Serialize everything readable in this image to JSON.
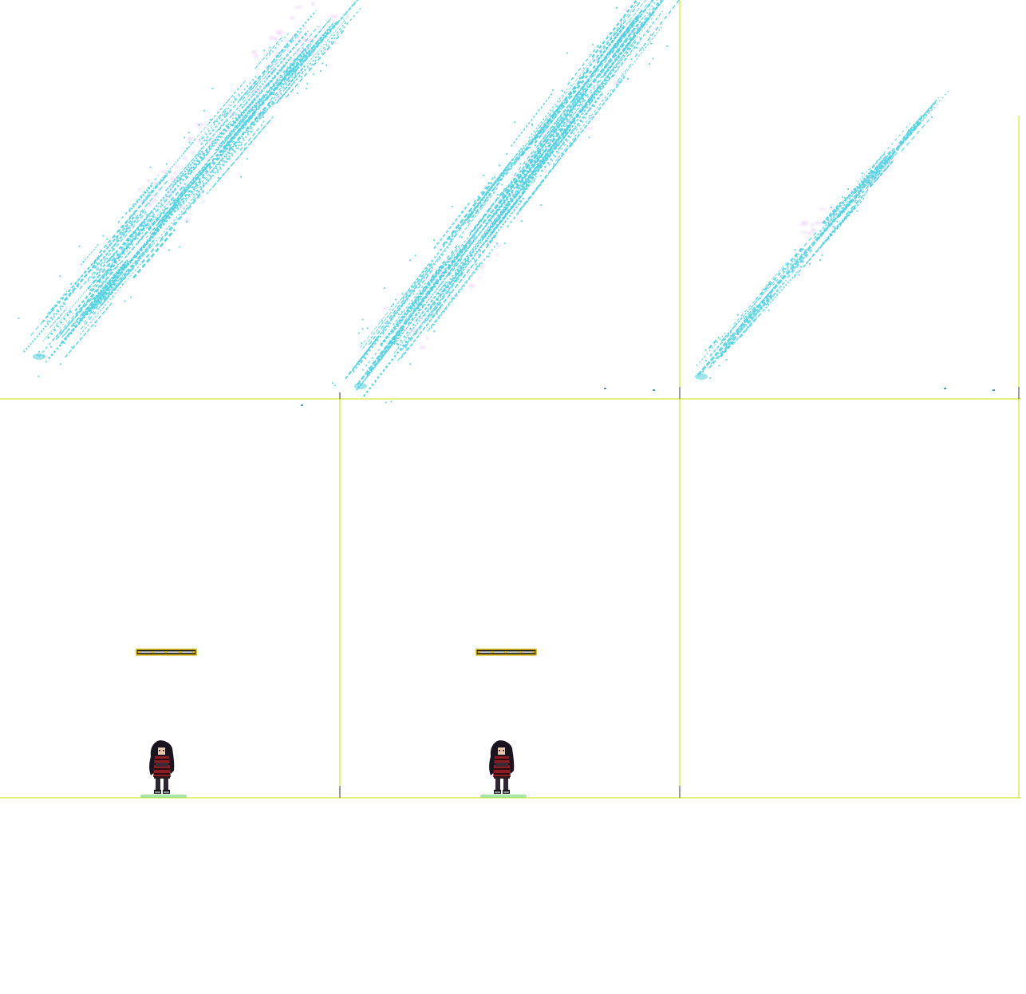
{
  "sprite_sheet": {
    "grid": {
      "columns": 3,
      "rows": 2
    },
    "guide_color": "#c8e000",
    "ground_color": "#6fd66f",
    "frames": [
      {
        "slot": "frame-1",
        "content": "lightning-slash-effect",
        "effect_primary": "#4fd0e0",
        "effect_secondary": "#e8c8f0"
      },
      {
        "slot": "frame-2",
        "content": "lightning-slash-effect",
        "effect_primary": "#4fd0e0",
        "effect_secondary": "#e8c8f0"
      },
      {
        "slot": "frame-3",
        "content": "lightning-slash-effect-thin",
        "effect_primary": "#4fd0e0",
        "effect_secondary": "#e8c8f0"
      },
      {
        "slot": "frame-4",
        "content": "character-idle",
        "hair_color": "#1a1420",
        "armor_color": "#8a1c24"
      },
      {
        "slot": "frame-5",
        "content": "character-idle",
        "hair_color": "#1a1420",
        "armor_color": "#8a1c24"
      },
      {
        "slot": "frame-6",
        "content": "empty"
      }
    ]
  }
}
